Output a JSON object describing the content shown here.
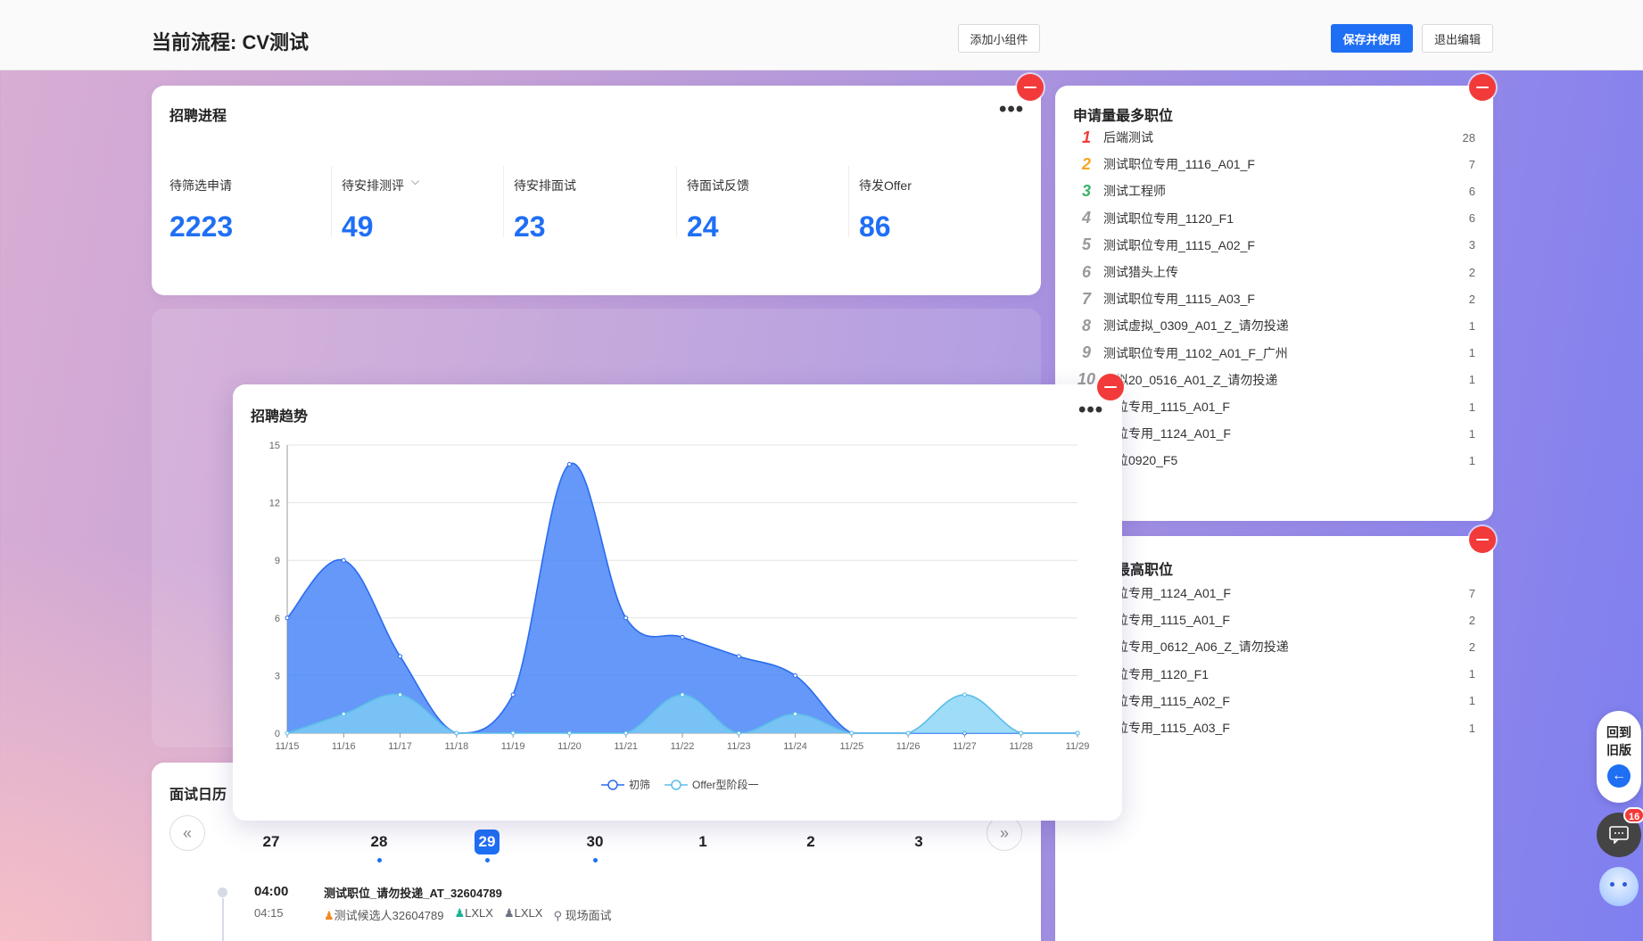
{
  "header": {
    "title": "当前流程: CV测试",
    "add_widget": "添加小组件",
    "save_use": "保存并使用",
    "exit_edit": "退出编辑"
  },
  "progress": {
    "title": "招聘进程",
    "more": "•••",
    "stats": [
      {
        "label": "待筛选申请",
        "value": "2223"
      },
      {
        "label": "待安排测评",
        "value": "49"
      },
      {
        "label": "待安排面试",
        "value": "23"
      },
      {
        "label": "待面试反馈",
        "value": "24"
      },
      {
        "label": "待发Offer",
        "value": "86"
      }
    ]
  },
  "top_apply": {
    "title": "申请量最多职位",
    "items": [
      {
        "rank": "1",
        "name": "后端测试",
        "value": "28"
      },
      {
        "rank": "2",
        "name": "测试职位专用_1116_A01_F",
        "value": "7"
      },
      {
        "rank": "3",
        "name": "测试工程师",
        "value": "6"
      },
      {
        "rank": "4",
        "name": "测试职位专用_1120_F1",
        "value": "6"
      },
      {
        "rank": "5",
        "name": "测试职位专用_1115_A02_F",
        "value": "3"
      },
      {
        "rank": "6",
        "name": "测试猎头上传",
        "value": "2"
      },
      {
        "rank": "7",
        "name": "测试职位专用_1115_A03_F",
        "value": "2"
      },
      {
        "rank": "8",
        "name": "测试虚拟_0309_A01_Z_请勿投递",
        "value": "1"
      },
      {
        "rank": "9",
        "name": "测试职位专用_1102_A01_F_广州",
        "value": "1"
      },
      {
        "rank": "10",
        "name": "虚拟20_0516_A01_Z_请勿投递",
        "value": "1"
      },
      {
        "rank": "",
        "name": "职位专用_1115_A01_F",
        "value": "1"
      },
      {
        "rank": "",
        "name": "职位专用_1124_A01_F",
        "value": "1"
      },
      {
        "rank": "",
        "name": "职位0920_F5",
        "value": "1"
      }
    ]
  },
  "top_second": {
    "title": "最高职位",
    "items": [
      {
        "name": "职位专用_1124_A01_F",
        "value": "7"
      },
      {
        "name": "职位专用_1115_A01_F",
        "value": "2"
      },
      {
        "name": "职位专用_0612_A06_Z_请勿投递",
        "value": "2"
      },
      {
        "name": "职位专用_1120_F1",
        "value": "1"
      },
      {
        "name": "职位专用_1115_A02_F",
        "value": "1"
      },
      {
        "name": "职位专用_1115_A03_F",
        "value": "1"
      }
    ]
  },
  "calendar": {
    "title": "面试日历",
    "days": [
      {
        "num": "27",
        "today": false,
        "dot": false
      },
      {
        "num": "28",
        "today": false,
        "dot": true
      },
      {
        "num": "29",
        "today": true,
        "dot": true
      },
      {
        "num": "30",
        "today": false,
        "dot": true
      },
      {
        "num": "1",
        "today": false,
        "dot": false
      },
      {
        "num": "2",
        "today": false,
        "dot": false
      },
      {
        "num": "3",
        "today": false,
        "dot": false
      }
    ],
    "event": {
      "start": "04:00",
      "end": "04:15",
      "title": "测试职位_请勿投递_AT_32604789",
      "candidate": "测试候选人32604789",
      "interviewer1": "LXLX",
      "interviewer2": "LXLX",
      "location": "现场面试"
    }
  },
  "trend": {
    "title": "招聘趋势",
    "more": "•••"
  },
  "chart_data": {
    "type": "area",
    "title": "招聘趋势",
    "categories": [
      "11/15",
      "11/16",
      "11/17",
      "11/18",
      "11/19",
      "11/20",
      "11/21",
      "11/22",
      "11/23",
      "11/24",
      "11/25",
      "11/26",
      "11/27",
      "11/28",
      "11/29"
    ],
    "series": [
      {
        "name": "初筛",
        "values": [
          6,
          9,
          4,
          0,
          2,
          14,
          6,
          5,
          4,
          3,
          0,
          0,
          0,
          0,
          0
        ],
        "color": "#4a86f7"
      },
      {
        "name": "Offer型阶段一",
        "values": [
          0,
          1,
          2,
          0,
          0,
          0,
          0,
          2,
          0,
          1,
          0,
          0,
          2,
          0,
          0
        ],
        "color": "#7fd0f5"
      }
    ],
    "ylim": [
      0,
      15
    ],
    "yticks": [
      0,
      3,
      6,
      9,
      12,
      15
    ],
    "grid": true,
    "legend": "bottom"
  },
  "float": {
    "back_old": "回到旧版",
    "badge": "16"
  }
}
